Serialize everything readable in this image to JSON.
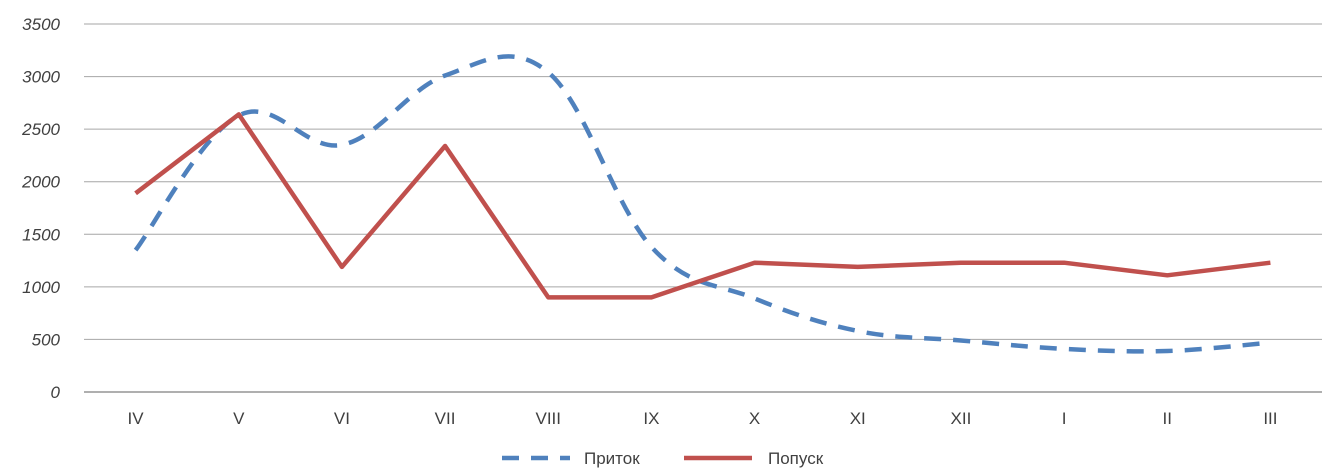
{
  "chart_data": {
    "type": "line",
    "categories": [
      "IV",
      "V",
      "VI",
      "VII",
      "VIII",
      "IX",
      "X",
      "XI",
      "XII",
      "I",
      "II",
      "III"
    ],
    "ylim": [
      0,
      3500
    ],
    "yticks": [
      0,
      500,
      1000,
      1500,
      2000,
      2500,
      3000,
      3500
    ],
    "grid": true,
    "legend_position": "bottom",
    "series": [
      {
        "name": "Приток",
        "color": "#4F81BD",
        "line_style": "dashed",
        "values": [
          1350,
          2630,
          2350,
          3010,
          3040,
          1380,
          890,
          580,
          490,
          410,
          390,
          470
        ]
      },
      {
        "name": "Попуск",
        "color": "#C0504D",
        "line_style": "solid",
        "values": [
          1890,
          2640,
          1190,
          2340,
          900,
          900,
          1230,
          1190,
          1230,
          1230,
          1110,
          1230
        ]
      }
    ]
  }
}
